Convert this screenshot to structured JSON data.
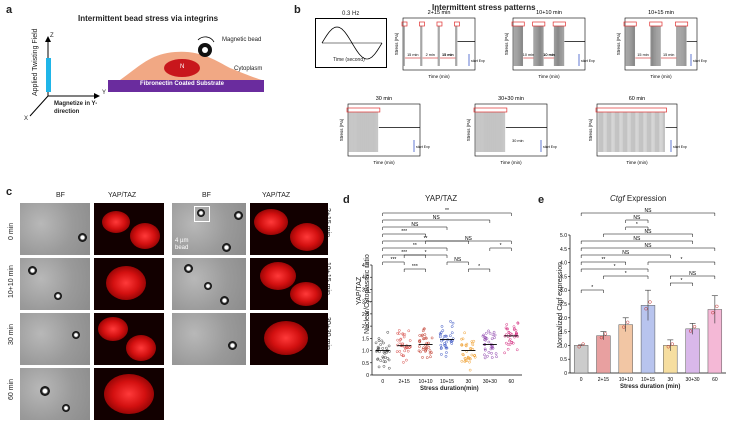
{
  "panel_a": {
    "label": "a",
    "title": "Intermittent bead stress via integrins",
    "axis_z": "Z",
    "axis_y": "Y",
    "axis_x": "X",
    "applied_field": "Applied Twisting Field",
    "magnetize": "Magnetize in Y-direction",
    "magnetic_bead": "Magnetic bead",
    "cytoplasm": "Cytoplasm",
    "nucleus": "N",
    "substrate": "Fibronectin Coated Substrate"
  },
  "panel_b": {
    "label": "b",
    "title": "Intermittent stress patterns",
    "sine_title": "0.3 Hz",
    "sine_xlabel": "Time (second)",
    "ylabel": "Stress (Pa)",
    "xlabel": "Time (min)",
    "start_exp": "start Exp",
    "plots": [
      {
        "title": "2+15 min",
        "notes": [
          "15 min",
          "2 min",
          "15 min",
          "15 min"
        ]
      },
      {
        "title": "10+10 min",
        "notes": [
          "10 min",
          "10 min",
          "10 min"
        ]
      },
      {
        "title": "10+15 min",
        "notes": [
          "15 min",
          "15 min"
        ]
      },
      {
        "title": "30 min",
        "notes": []
      },
      {
        "title": "30+30 min",
        "notes": [
          "30 min"
        ]
      },
      {
        "title": "60 min",
        "notes": []
      }
    ]
  },
  "panel_c": {
    "label": "c",
    "col_bf": "BF",
    "col_yap": "YAP/TAZ",
    "left_rows": [
      "0 min",
      "10+10 min",
      "30 min",
      "60 min"
    ],
    "right_rows": [
      "2+15 min",
      "10+15 min",
      "30+30 min"
    ],
    "bead_note": "4 µm bead"
  },
  "panel_d": {
    "label": "d",
    "title": "YAP/TAZ",
    "ylabel_top": "YAP/TAZ",
    "ylabel": "Nuclear/Cytoplasmic ratio",
    "xlabel": "Stress duration(min)",
    "sig": [
      "**",
      "NS",
      "NS",
      "***",
      "**",
      "NS",
      "**",
      "***",
      "***",
      "*",
      "NS",
      "***",
      "*",
      "*"
    ],
    "chart_data": {
      "type": "scatter",
      "categories": [
        "0",
        "2+15",
        "10+10",
        "10+15",
        "30",
        "30+30",
        "60"
      ],
      "means": [
        1.0,
        1.2,
        1.25,
        1.45,
        1.0,
        1.25,
        1.6
      ],
      "ylim": [
        0,
        4.5
      ],
      "yticks": [
        "0",
        "0.5",
        "1.0",
        "1.5",
        "2.0",
        "2.5",
        "3.0",
        "3.5",
        "4.0",
        "4.5"
      ],
      "colors": [
        "#444444",
        "#d9534f",
        "#c0392b",
        "#3a55c4",
        "#f0a030",
        "#8e44ad",
        "#d63384"
      ]
    }
  },
  "panel_e": {
    "label": "e",
    "title_gene": "Ctgf",
    "title_rest": " Expression",
    "ylabel": "Normalized Ctgf expression",
    "xlabel": "Stress duration (min)",
    "sig": [
      "NS",
      "NS",
      "*",
      "NS",
      "NS",
      "NS",
      "NS",
      "**",
      "*",
      "*",
      "*",
      "*",
      "NS",
      "*"
    ],
    "chart_data": {
      "type": "bar",
      "categories": [
        "0",
        "2+15",
        "10+10",
        "10+15",
        "30",
        "30+30",
        "60"
      ],
      "values": [
        1.0,
        1.35,
        1.75,
        2.45,
        1.0,
        1.6,
        2.3
      ],
      "errors": [
        0.02,
        0.15,
        0.25,
        0.55,
        0.2,
        0.2,
        0.5
      ],
      "ylim": [
        0,
        5.0
      ],
      "yticks": [
        "0",
        "0.5",
        "1.0",
        "1.5",
        "2.0",
        "2.5",
        "3.0",
        "3.5",
        "4.0",
        "4.5",
        "5.0"
      ],
      "colors": [
        "#cccccc",
        "#e8a0a0",
        "#f2c6a4",
        "#b8c4ee",
        "#f6dea0",
        "#d9b8ea",
        "#f4b8d6"
      ]
    }
  }
}
